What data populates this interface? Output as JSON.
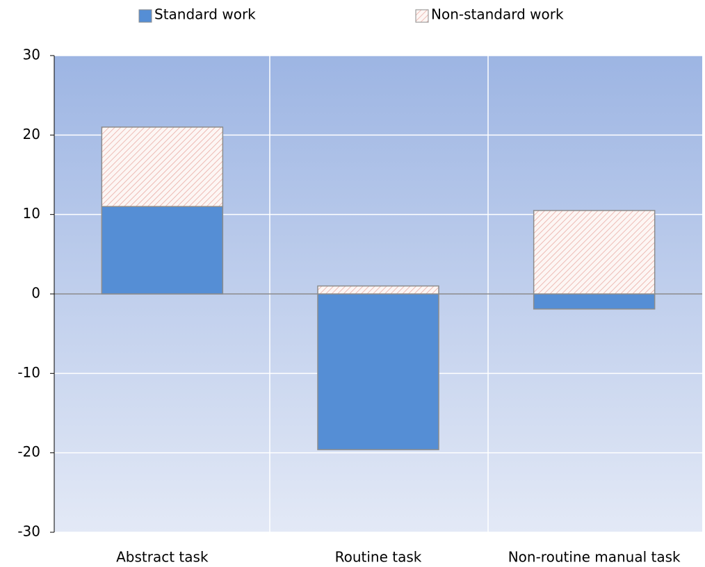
{
  "chart_data": {
    "type": "bar",
    "stacked": true,
    "categories": [
      "Abstract task",
      "Routine task",
      "Non-routine manual task"
    ],
    "series": [
      {
        "name": "Standard work",
        "color": "#558ed5",
        "values": [
          11,
          -19.6,
          -1.9
        ]
      },
      {
        "name": "Non-standard work",
        "color": "#e8a8a0",
        "values": [
          10,
          1,
          10.5
        ]
      }
    ],
    "ylim": [
      -30,
      30
    ],
    "yticks": [
      -30,
      -20,
      -10,
      0,
      10,
      20,
      30
    ],
    "grid": true
  }
}
